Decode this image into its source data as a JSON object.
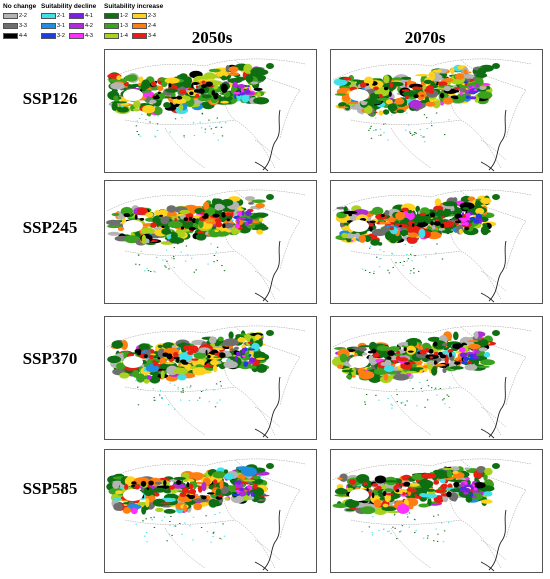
{
  "legend": {
    "groups": [
      {
        "title": "No change",
        "items": [
          {
            "code": "2-2",
            "color": "#b4b4b4"
          },
          {
            "code": "3-3",
            "color": "#6e6e6e"
          },
          {
            "code": "4-4",
            "color": "#000000"
          }
        ]
      },
      {
        "title": "Suitability decline",
        "items": [
          {
            "code": "2-1",
            "color": "#40e0e8"
          },
          {
            "code": "3-1",
            "color": "#1e8fe0"
          },
          {
            "code": "3-2",
            "color": "#1e3fe0"
          },
          {
            "code": "4-1",
            "color": "#7a1ee0"
          },
          {
            "code": "4-2",
            "color": "#b02cd8"
          },
          {
            "code": "4-3",
            "color": "#ff30ff"
          }
        ]
      },
      {
        "title": "Suitability increase",
        "items": [
          {
            "code": "1-2",
            "color": "#0e6e12"
          },
          {
            "code": "1-3",
            "color": "#3aa21e"
          },
          {
            "code": "1-4",
            "color": "#a8d21e"
          },
          {
            "code": "2-3",
            "color": "#ffd21e"
          },
          {
            "code": "2-4",
            "color": "#ff7e12"
          },
          {
            "code": "3-4",
            "color": "#e81e12"
          }
        ]
      }
    ]
  },
  "columns": [
    "2050s",
    "2070s"
  ],
  "rows": [
    "SSP126",
    "SSP245",
    "SSP370",
    "SSP585"
  ]
}
